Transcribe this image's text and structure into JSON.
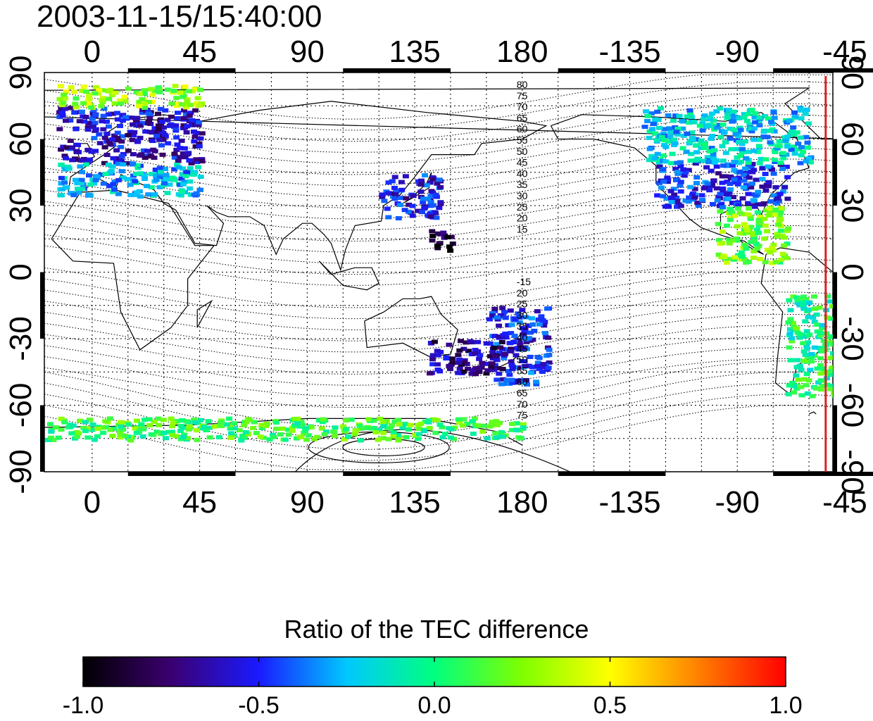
{
  "timestamp": "2003-11-15/15:40:00",
  "map": {
    "x_tick_labels": [
      "0",
      "45",
      "90",
      "135",
      "180",
      "-135",
      "-90",
      "-45"
    ],
    "y_tick_labels_left": [
      "90",
      "60",
      "30",
      "0",
      "-30",
      "-60",
      "-90"
    ],
    "y_tick_labels_right": [
      "90",
      "60",
      "30",
      "0",
      "-30",
      "-60",
      "-90"
    ],
    "longitude_range": [
      -20,
      310
    ],
    "latitude_range": [
      -90,
      90
    ],
    "grid": true,
    "contour_labels_north": [
      "80",
      "75",
      "70",
      "65",
      "60",
      "55",
      "50",
      "45",
      "40",
      "35",
      "30",
      "25",
      "20",
      "15"
    ],
    "contour_labels_south": [
      "-15",
      "20",
      "25",
      "30",
      "35",
      "40",
      "45",
      "50",
      "55",
      "60",
      "65",
      "70",
      "75"
    ],
    "reference_line_longitude": -53,
    "reference_line_color": "#e02020"
  },
  "colorbar": {
    "title": "Ratio of the TEC difference",
    "tick_labels": [
      "-1.0",
      "-0.5",
      "0.0",
      "0.5",
      "1.0"
    ],
    "range": [
      -1.0,
      1.0
    ],
    "colors": [
      "#000000",
      "#3b0070",
      "#1a1aff",
      "#00c8ff",
      "#00ff7f",
      "#7fff00",
      "#ffff00",
      "#ff8000",
      "#ff0000"
    ]
  },
  "chart_data": {
    "type": "heatmap",
    "title": "2003-11-15/15:40:00",
    "xlabel": "",
    "ylabel": "",
    "xlim": [
      -20,
      310
    ],
    "ylim": [
      -90,
      90
    ],
    "colorbar_label": "Ratio of the TEC difference",
    "colorbar_range": [
      -1.0,
      1.0
    ],
    "regions": [
      {
        "lon": [
          -15,
          45
        ],
        "lat": [
          50,
          75
        ],
        "value": -0.6
      },
      {
        "lon": [
          -15,
          45
        ],
        "lat": [
          35,
          50
        ],
        "value": -0.25
      },
      {
        "lon": [
          -15,
          45
        ],
        "lat": [
          75,
          85
        ],
        "value": 0.3
      },
      {
        "lon": [
          120,
          145
        ],
        "lat": [
          25,
          45
        ],
        "value": -0.55
      },
      {
        "lon": [
          140,
          150
        ],
        "lat": [
          10,
          20
        ],
        "value": -0.9
      },
      {
        "lon": [
          -125,
          -70
        ],
        "lat": [
          30,
          50
        ],
        "value": -0.5
      },
      {
        "lon": [
          -130,
          -60
        ],
        "lat": [
          50,
          75
        ],
        "value": -0.2
      },
      {
        "lon": [
          -100,
          -70
        ],
        "lat": [
          5,
          30
        ],
        "value": 0.2
      },
      {
        "lon": [
          -70,
          -50
        ],
        "lat": [
          -55,
          -10
        ],
        "value": 0.0
      },
      {
        "lon": [
          165,
          190
        ],
        "lat": [
          -50,
          -15
        ],
        "value": -0.5
      },
      {
        "lon": [
          140,
          175
        ],
        "lat": [
          -45,
          -30
        ],
        "value": -0.7
      },
      {
        "lon": [
          -20,
          180
        ],
        "lat": [
          -75,
          -65
        ],
        "value": 0.1
      }
    ]
  }
}
